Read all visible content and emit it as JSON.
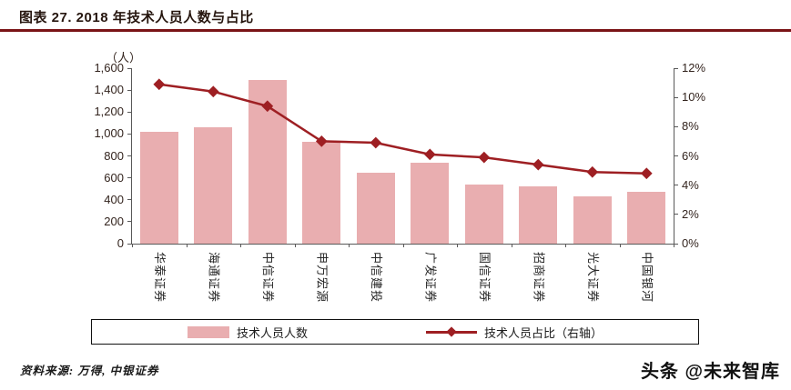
{
  "header": {
    "title": "图表 27. 2018 年技术人员人数与占比"
  },
  "chart_data": {
    "type": "bar",
    "subtype": "bar+line-combo",
    "categories": [
      "华泰证券",
      "海通证券",
      "中信证券",
      "申万宏源",
      "中信建投",
      "广发证券",
      "国信证券",
      "招商证券",
      "光大证券",
      "中国银河"
    ],
    "series": [
      {
        "name": "技术人员人数",
        "type": "bar",
        "axis": "left",
        "values": [
          1020,
          1060,
          1490,
          930,
          650,
          740,
          540,
          520,
          430,
          470
        ]
      },
      {
        "name": "技术人员占比（右轴）",
        "type": "line",
        "axis": "right",
        "values": [
          10.9,
          10.4,
          9.4,
          7.0,
          6.9,
          6.1,
          5.9,
          5.4,
          4.9,
          4.8
        ]
      }
    ],
    "left_axis": {
      "unit": "（人）",
      "min": 0,
      "max": 1600,
      "ticks": [
        "0",
        "200",
        "400",
        "600",
        "800",
        "1,000",
        "1,200",
        "1,400",
        "1,600"
      ]
    },
    "right_axis": {
      "min": 0,
      "max": 12,
      "ticks": [
        "0%",
        "2%",
        "4%",
        "6%",
        "8%",
        "10%",
        "12%"
      ]
    },
    "title": "2018 年技术人员人数与占比",
    "xlabel": "",
    "ylabel": "（人）",
    "grid": false,
    "legend_position": "bottom",
    "colors": {
      "bar": "#e9aeb0",
      "line": "#9e1f23",
      "rule": "#7a1316"
    }
  },
  "legend": {
    "bar_label": "技术人员人数",
    "line_label": "技术人员占比（右轴）"
  },
  "footer": {
    "source": "资料来源: 万得, 中银证券",
    "watermark": "头条 @未来智库"
  }
}
